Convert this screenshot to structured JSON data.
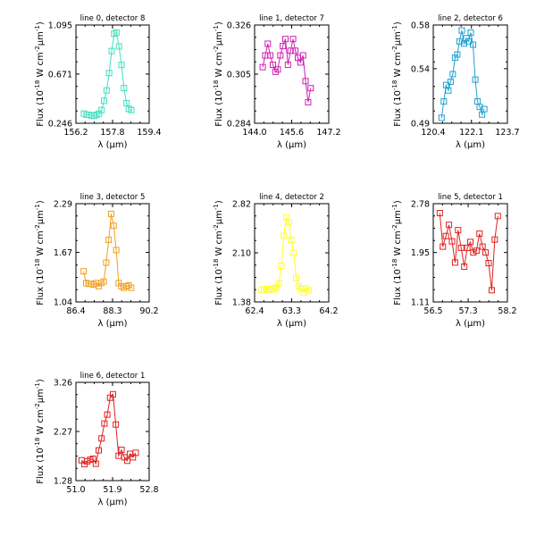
{
  "chart_data": [
    {
      "type": "line",
      "title": "line 0, detector 8",
      "color": "#40e0c0",
      "xlim": [
        156.2,
        159.4
      ],
      "ylim": [
        0.246,
        1.095
      ],
      "xticks": [
        "156.2",
        "157.8",
        "159.4"
      ],
      "yticks": [
        "0.246",
        "0.671",
        "1.095"
      ],
      "xlabel": "λ (μm)",
      "ylabel": "Flux (10^-18 W cm^-2 μm^-1)",
      "x": [
        156.55,
        156.66,
        156.78,
        156.88,
        157.0,
        157.1,
        157.21,
        157.32,
        157.43,
        157.54,
        157.65,
        157.76,
        157.87,
        157.97,
        158.08,
        158.19,
        158.3,
        158.41,
        158.51,
        158.62
      ],
      "y": [
        0.33,
        0.32,
        0.32,
        0.31,
        0.31,
        0.32,
        0.33,
        0.36,
        0.44,
        0.53,
        0.68,
        0.87,
        1.02,
        1.03,
        0.91,
        0.75,
        0.55,
        0.42,
        0.37,
        0.36
      ]
    },
    {
      "type": "line",
      "title": "line 1, detector 7",
      "color": "#d020b0",
      "xlim": [
        144.0,
        147.2
      ],
      "ylim": [
        0.284,
        0.326
      ],
      "xticks": [
        "144.0",
        "145.6",
        "147.2"
      ],
      "yticks": [
        "0.284",
        "0.305",
        "0.326"
      ],
      "xlabel": "λ (μm)",
      "ylabel": "Flux (10^-18 W cm^-2 μm^-1)",
      "x": [
        144.35,
        144.46,
        144.57,
        144.68,
        144.79,
        144.9,
        145.0,
        145.11,
        145.22,
        145.33,
        145.44,
        145.55,
        145.66,
        145.76,
        145.87,
        145.98,
        146.09,
        146.2,
        146.31,
        146.42
      ],
      "y": [
        0.308,
        0.313,
        0.318,
        0.313,
        0.309,
        0.306,
        0.307,
        0.313,
        0.317,
        0.32,
        0.309,
        0.315,
        0.32,
        0.315,
        0.312,
        0.31,
        0.313,
        0.302,
        0.293,
        0.299
      ]
    },
    {
      "type": "line",
      "title": "line 2, detector 6",
      "color": "#20a0d0",
      "xlim": [
        120.4,
        123.7
      ],
      "ylim": [
        0.49,
        0.58
      ],
      "xticks": [
        "120.4",
        "122.1",
        "123.7"
      ],
      "yticks": [
        "0.49",
        "0.54",
        "0.58"
      ],
      "xlabel": "λ (μm)",
      "ylabel": "Flux (10^-18 W cm^-2 μm^-1)",
      "x": [
        120.77,
        120.87,
        120.97,
        121.07,
        121.17,
        121.27,
        121.37,
        121.47,
        121.57,
        121.67,
        121.77,
        121.87,
        121.97,
        122.07,
        122.17,
        122.27,
        122.37,
        122.47,
        122.57,
        122.67
      ],
      "y": [
        0.495,
        0.51,
        0.525,
        0.52,
        0.528,
        0.535,
        0.55,
        0.553,
        0.565,
        0.575,
        0.563,
        0.568,
        0.565,
        0.573,
        0.562,
        0.53,
        0.51,
        0.505,
        0.498,
        0.503
      ]
    },
    {
      "type": "line",
      "title": "line 3, detector 5",
      "color": "#f0a020",
      "xlim": [
        86.4,
        90.2
      ],
      "ylim": [
        1.04,
        2.29
      ],
      "xticks": [
        "86.4",
        "88.3",
        "90.2"
      ],
      "yticks": [
        "1.04",
        "1.67",
        "2.29"
      ],
      "xlabel": "λ (μm)",
      "ylabel": "Flux (10^-18 W cm^-2 μm^-1)",
      "x": [
        86.8,
        86.93,
        87.06,
        87.19,
        87.32,
        87.45,
        87.58,
        87.71,
        87.84,
        87.97,
        88.1,
        88.23,
        88.36,
        88.49,
        88.62,
        88.75,
        88.88,
        89.01,
        89.14,
        89.27
      ],
      "y": [
        1.43,
        1.28,
        1.27,
        1.27,
        1.26,
        1.28,
        1.24,
        1.28,
        1.3,
        1.54,
        1.83,
        2.16,
        2.01,
        1.7,
        1.28,
        1.24,
        1.22,
        1.24,
        1.25,
        1.22
      ]
    },
    {
      "type": "line",
      "title": "line 4, detector 2",
      "color": "#ffff20",
      "xlim": [
        62.4,
        64.2
      ],
      "ylim": [
        1.38,
        2.82
      ],
      "xticks": [
        "62.4",
        "63.3",
        "64.2"
      ],
      "yticks": [
        "1.38",
        "2.10",
        "2.82"
      ],
      "xlabel": "λ (μm)",
      "ylabel": "Flux (10^-18 W cm^-2 μm^-1)",
      "x": [
        62.57,
        62.63,
        62.69,
        62.75,
        62.81,
        62.87,
        62.93,
        62.99,
        63.05,
        63.11,
        63.17,
        63.23,
        63.29,
        63.35,
        63.41,
        63.47,
        63.53,
        63.59,
        63.65,
        63.71
      ],
      "y": [
        1.56,
        1.56,
        1.57,
        1.57,
        1.56,
        1.58,
        1.59,
        1.65,
        1.91,
        2.35,
        2.62,
        2.55,
        2.29,
        2.1,
        1.73,
        1.61,
        1.58,
        1.52,
        1.58,
        1.55
      ]
    },
    {
      "type": "line",
      "title": "line 5, detector 1",
      "color": "#e02020",
      "xlim": [
        56.5,
        58.2
      ],
      "ylim": [
        1.11,
        2.78
      ],
      "xticks": [
        "56.5",
        "57.3",
        "58.2"
      ],
      "yticks": [
        "1.11",
        "1.95",
        "2.78"
      ],
      "xlabel": "λ (μm)",
      "ylabel": "Flux (10^-18 W cm^-2 μm^-1)",
      "x": [
        56.65,
        56.72,
        56.79,
        56.86,
        56.93,
        57.0,
        57.07,
        57.14,
        57.21,
        57.28,
        57.35,
        57.42,
        57.49,
        57.56,
        57.63,
        57.7,
        57.77,
        57.84,
        57.91,
        57.98
      ],
      "y": [
        2.62,
        2.05,
        2.23,
        2.42,
        2.14,
        1.78,
        2.33,
        2.03,
        1.71,
        2.03,
        2.13,
        1.95,
        1.98,
        2.27,
        2.05,
        1.95,
        1.77,
        1.31,
        2.17,
        2.57
      ]
    },
    {
      "type": "line",
      "title": "line 6, detector 1",
      "color": "#e02020",
      "xlim": [
        51.0,
        52.8
      ],
      "ylim": [
        1.28,
        3.26
      ],
      "xticks": [
        "51.0",
        "51.9",
        "52.8"
      ],
      "yticks": [
        "1.28",
        "2.27",
        "3.26"
      ],
      "xlabel": "λ (μm)",
      "ylabel": "Flux (10^-18 W cm^-2 μm^-1)",
      "x": [
        51.14,
        51.21,
        51.28,
        51.35,
        51.42,
        51.49,
        51.56,
        51.63,
        51.7,
        51.77,
        51.84,
        51.91,
        51.98,
        52.05,
        52.12,
        52.19,
        52.26,
        52.33,
        52.4,
        52.47
      ],
      "y": [
        1.69,
        1.61,
        1.67,
        1.7,
        1.72,
        1.62,
        1.89,
        2.13,
        2.43,
        2.61,
        2.95,
        3.02,
        2.41,
        1.78,
        1.9,
        1.75,
        1.68,
        1.82,
        1.75,
        1.84
      ]
    }
  ]
}
